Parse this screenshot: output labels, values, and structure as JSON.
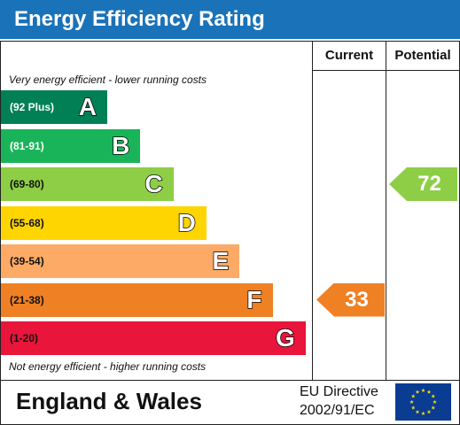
{
  "header": {
    "title": "Energy Efficiency Rating"
  },
  "columns": {
    "current": "Current",
    "potential": "Potential"
  },
  "notes": {
    "top": "Very energy efficient - lower running costs",
    "bottom": "Not energy efficient - higher running costs"
  },
  "chart_data": {
    "type": "bar",
    "categories": [
      "A",
      "B",
      "C",
      "D",
      "E",
      "F",
      "G"
    ],
    "ranges": [
      "(92 Plus)",
      "(81-91)",
      "(69-80)",
      "(55-68)",
      "(39-54)",
      "(21-38)",
      "(1-20)"
    ],
    "band_min": [
      92,
      81,
      69,
      55,
      39,
      21,
      1
    ],
    "colors": [
      "#008054",
      "#19b459",
      "#8dce46",
      "#ffd500",
      "#fcaa65",
      "#ef8023",
      "#e9153b"
    ],
    "range_text_colors": [
      "#ffffff",
      "#ffffff",
      "#111111",
      "#111111",
      "#111111",
      "#111111",
      "#111111"
    ],
    "current": {
      "value": 33,
      "label": "33",
      "color": "#ef8023"
    },
    "potential": {
      "value": 72,
      "label": "72",
      "color": "#8dce46"
    }
  },
  "footer": {
    "region": "England & Wales",
    "directive_line1": "EU Directive",
    "directive_line2": "2002/91/EC",
    "flag_icon": "eu-flag-icon"
  }
}
